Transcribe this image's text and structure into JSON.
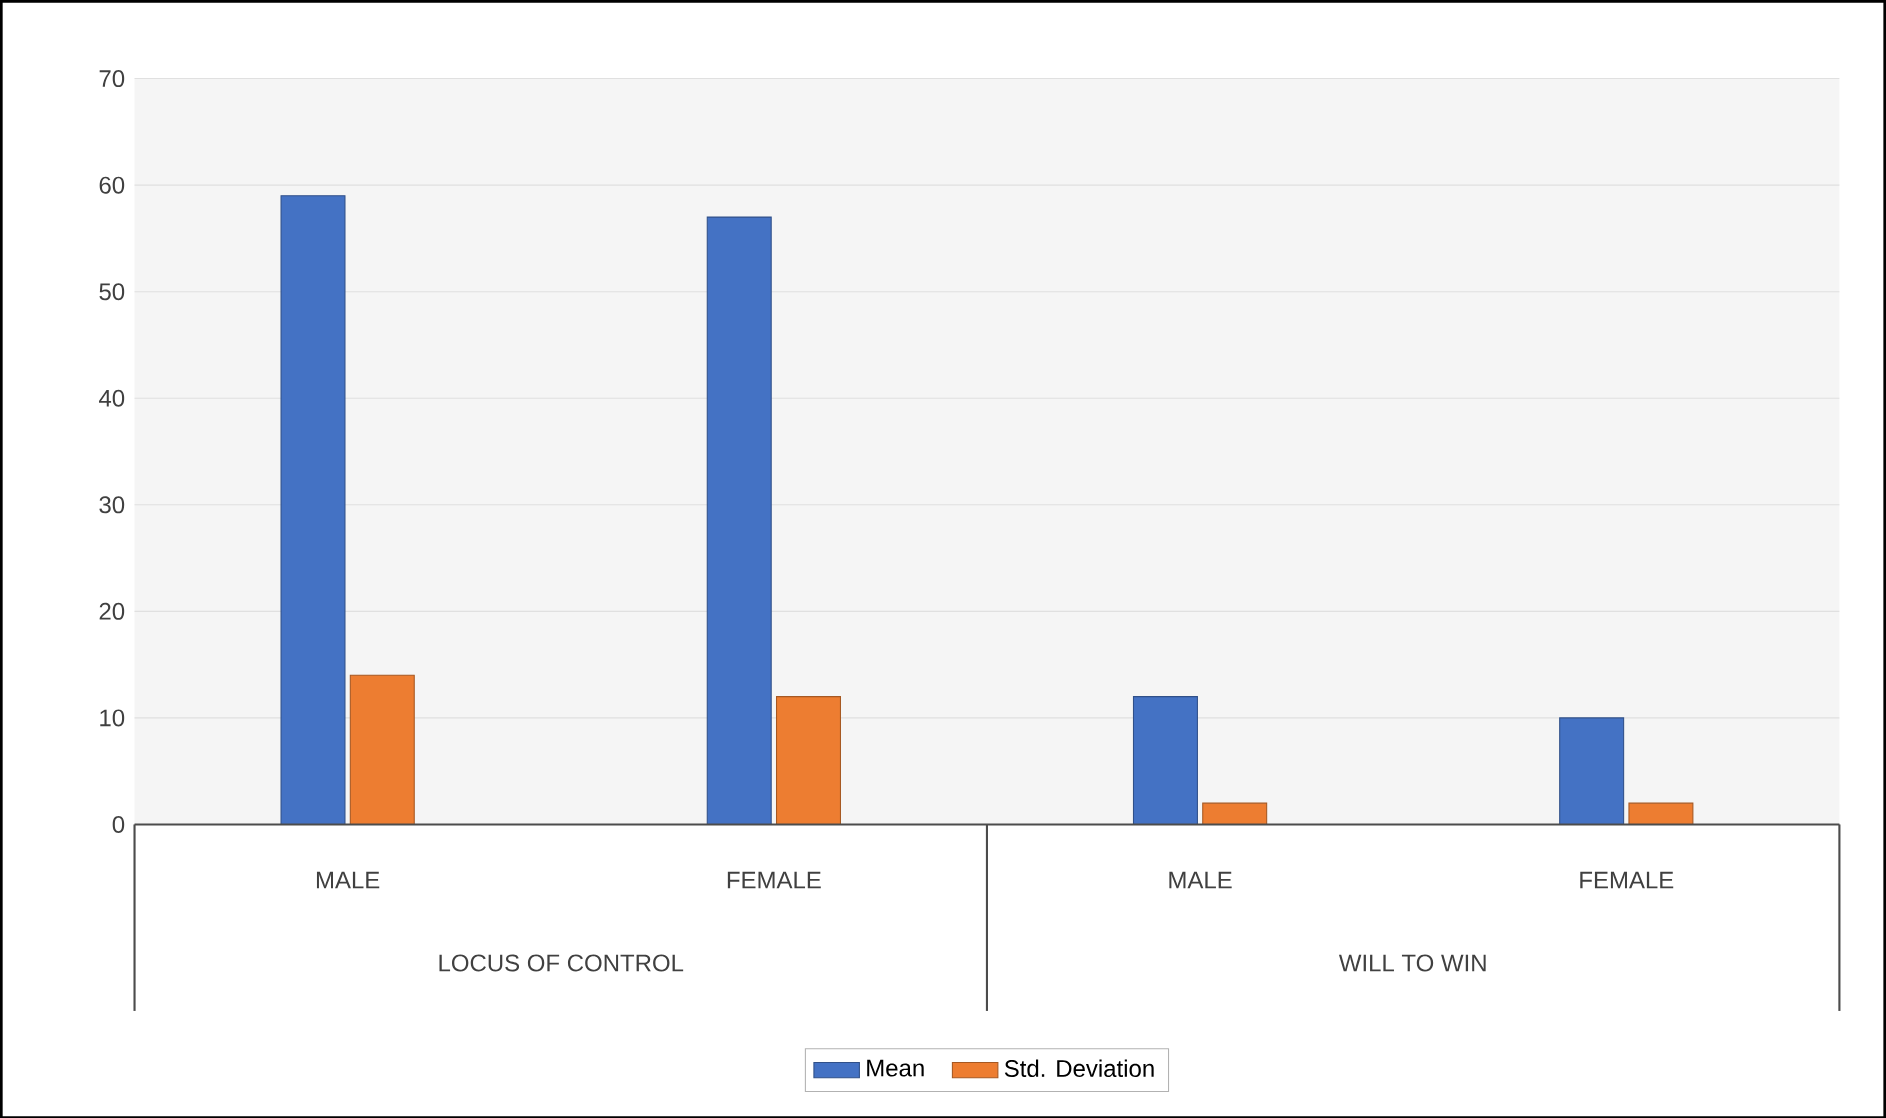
{
  "chart_data": {
    "type": "bar",
    "categories": [
      "MALE",
      "FEMALE",
      "MALE",
      "FEMALE"
    ],
    "series": [
      {
        "name": "Mean",
        "color": "#4472c4",
        "values": [
          59,
          57,
          12,
          10
        ]
      },
      {
        "name": "Std. Deviation",
        "color": "#ed7d31",
        "values": [
          14,
          12,
          2,
          2
        ]
      }
    ],
    "ylim": [
      0,
      70
    ],
    "yticks": [
      0,
      10,
      20,
      30,
      40,
      50,
      60,
      70
    ],
    "grid": "y",
    "legend": "bottom",
    "annotations": [
      "LOCUS OF CONTROL",
      "WILL TO WIN"
    ]
  }
}
